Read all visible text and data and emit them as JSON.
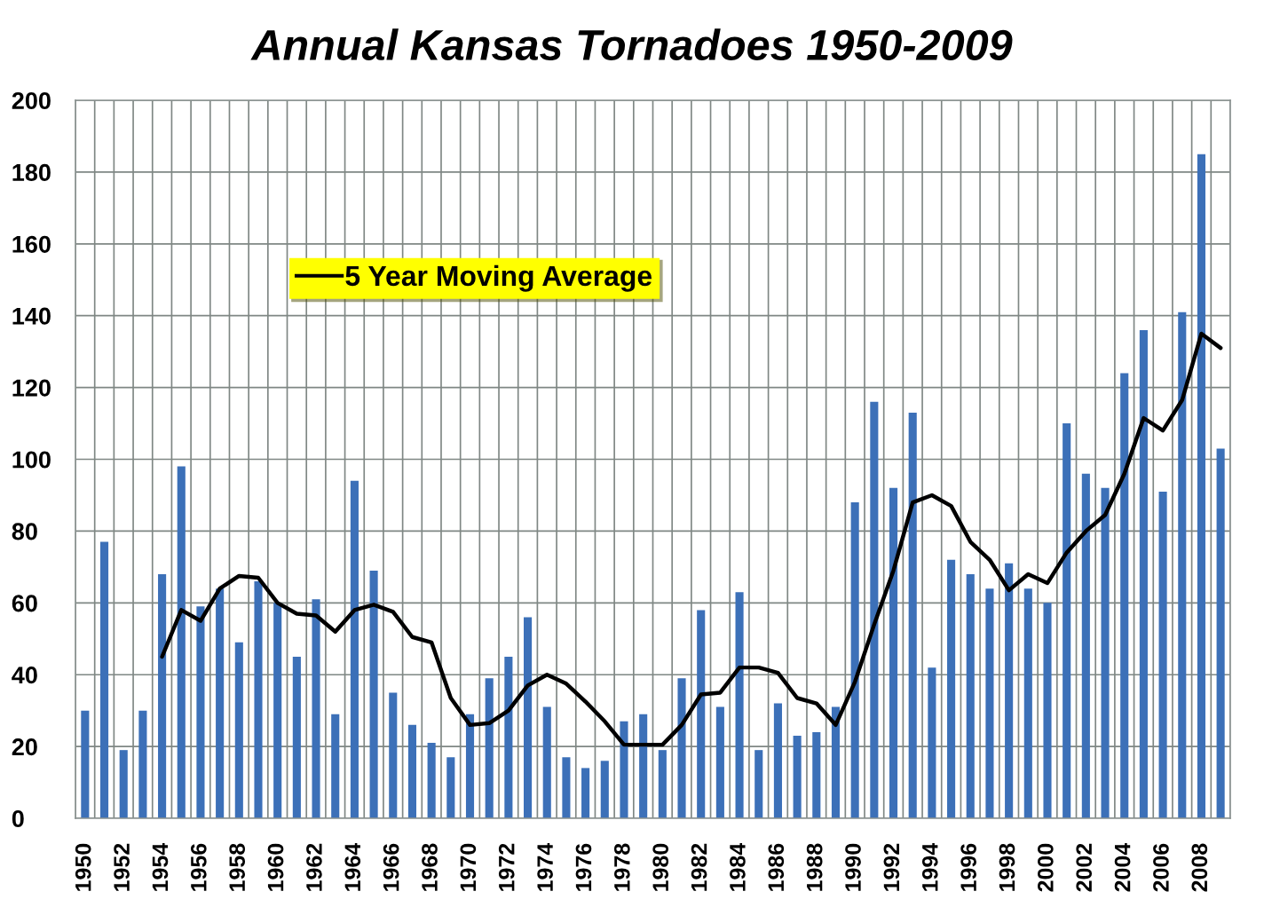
{
  "chart_data": {
    "type": "bar",
    "title": "Annual Kansas Tornadoes 1950-2009",
    "categories": [
      "1950",
      null,
      "1952",
      null,
      "1954",
      null,
      "1956",
      null,
      "1958",
      null,
      "1960",
      null,
      "1962",
      null,
      "1964",
      null,
      "1966",
      null,
      "1968",
      null,
      "1970",
      null,
      "1972",
      null,
      "1974",
      null,
      "1976",
      null,
      "1978",
      null,
      "1980",
      null,
      "1982",
      null,
      "1984",
      null,
      "1986",
      null,
      "1988",
      null,
      "1990",
      null,
      "1992",
      null,
      "1994",
      null,
      "1996",
      null,
      "1998",
      null,
      "2000",
      null,
      "2002",
      null,
      "2004",
      null,
      "2006",
      null,
      "2008",
      null
    ],
    "series": [
      {
        "color": "#3c70b8",
        "values": [
          30,
          77,
          19,
          30,
          68,
          98,
          59,
          64,
          49,
          66,
          60,
          45,
          61,
          29,
          94,
          69,
          35,
          26,
          21,
          17,
          29,
          39,
          45,
          56,
          31,
          17,
          14,
          16,
          27,
          29,
          19,
          39,
          58,
          31,
          63,
          19,
          32,
          23,
          24,
          31,
          88,
          116,
          92,
          113,
          42,
          72,
          68,
          64,
          71,
          64,
          60,
          110,
          96,
          92,
          124,
          136,
          91,
          141,
          185,
          103
        ]
      },
      {
        "type": "line",
        "name": "5 Year Moving Average",
        "color": "#000000",
        "values": [
          null,
          null,
          null,
          null,
          45,
          58,
          55,
          64,
          67.5,
          67,
          60,
          57,
          56.5,
          52,
          58,
          59.5,
          57.5,
          50.5,
          49,
          33.5,
          26,
          26.5,
          30,
          37,
          40,
          37.5,
          32.5,
          27,
          20.5,
          20.5,
          20.5,
          26,
          34.5,
          35,
          42,
          42,
          40.5,
          33.5,
          32,
          26,
          38,
          54,
          69,
          88,
          90,
          87,
          77,
          72,
          63.5,
          68,
          65.5,
          74,
          80,
          84.5,
          96,
          111.5,
          108,
          116.5,
          135,
          131
        ]
      }
    ],
    "ylim": [
      0,
      200
    ],
    "yticks": [
      0,
      20,
      40,
      60,
      80,
      100,
      120,
      140,
      160,
      180,
      200
    ],
    "grid": true,
    "legend": "top left"
  }
}
